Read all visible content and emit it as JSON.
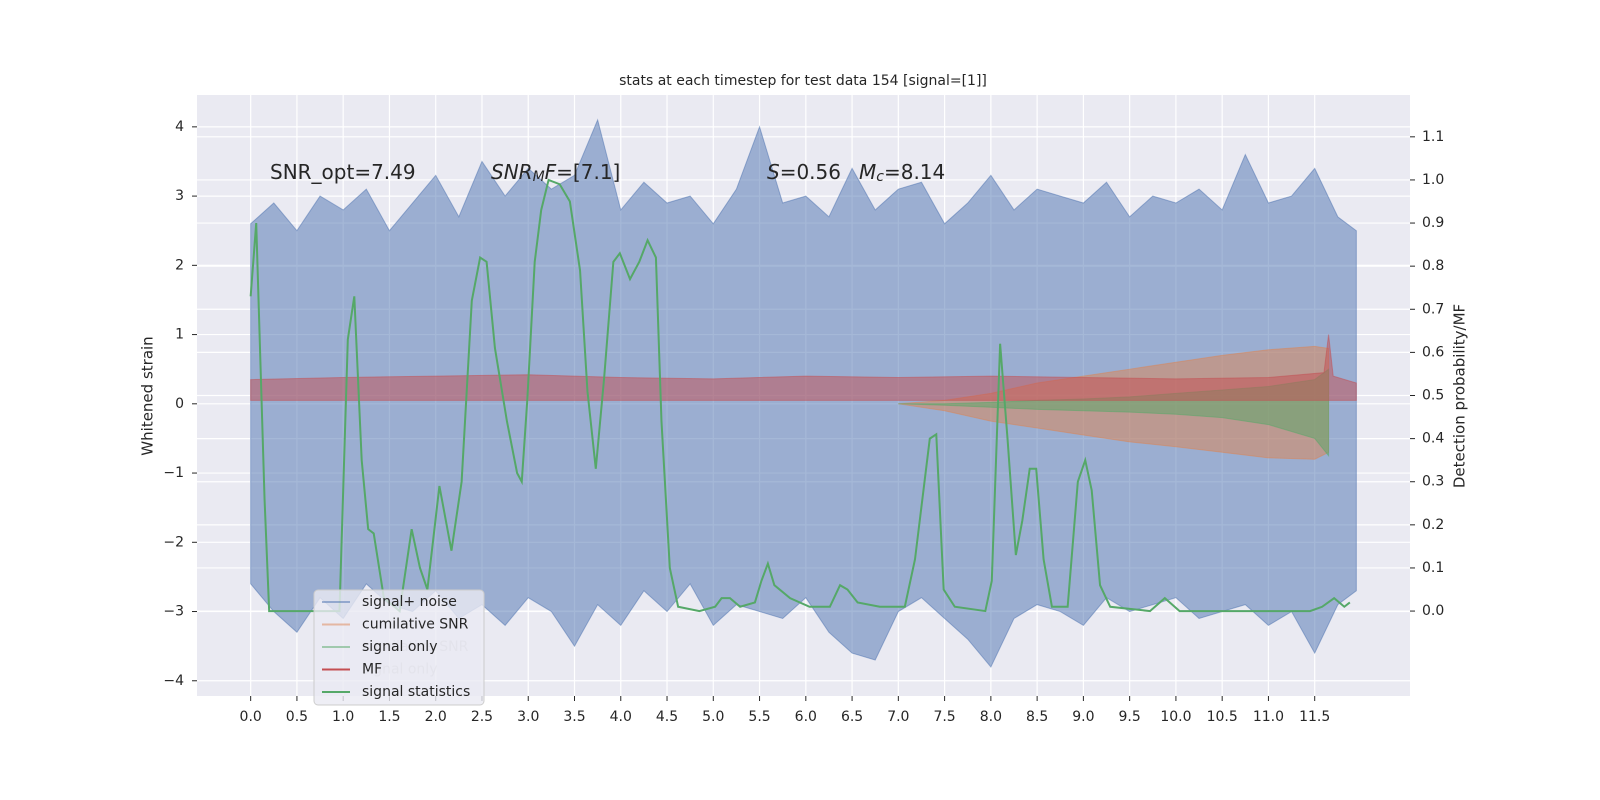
{
  "chart_data": {
    "type": "line",
    "title": "stats at each timestep for test data 154 [signal=[1]]",
    "ylabel": "Whitened strain",
    "y2label": "Detection probability/MF",
    "xlim": [
      -0.58,
      12.53
    ],
    "ylim": [
      -4.22,
      4.46
    ],
    "y2lim": [
      -0.197,
      1.197
    ],
    "xticks": [
      {
        "value": 0,
        "label": "0.0"
      },
      0.5,
      {
        "value": 1,
        "label": "1.0"
      },
      1.5,
      {
        "value": 2,
        "label": "2.0"
      },
      2.5,
      {
        "value": 3,
        "label": "3.0"
      },
      3.5,
      {
        "value": 4,
        "label": "4.0"
      },
      4.5,
      {
        "value": 5,
        "label": "5.0"
      },
      5.5,
      {
        "value": 6,
        "label": "6.0"
      },
      6.5,
      {
        "value": 7,
        "label": "7.0"
      },
      7.5,
      {
        "value": 8,
        "label": "8.0"
      },
      8.5,
      {
        "value": 9,
        "label": "9.0"
      },
      9.5,
      {
        "value": 10,
        "label": "10.0"
      },
      10.5,
      {
        "value": 11,
        "label": "11.0"
      },
      11.5
    ],
    "yticks": [
      {
        "value": -4,
        "label": "−4"
      },
      {
        "value": -3,
        "label": "−3"
      },
      {
        "value": -2,
        "label": "−2"
      },
      {
        "value": -1,
        "label": "−1"
      },
      0,
      1,
      2,
      3,
      4
    ],
    "y2ticks": [
      {
        "value": 0,
        "label": "0.0"
      },
      0.1,
      0.2,
      0.3,
      0.4,
      0.5,
      0.6,
      0.7,
      0.8,
      0.9,
      {
        "value": 1,
        "label": "1.0"
      },
      1.1
    ],
    "grid": true,
    "legend": "lower left",
    "annotations": [
      [
        {
          "text": "SNR_opt=7.49"
        }
      ],
      [
        {
          "text": "SNR",
          "italic": true
        },
        {
          "text": "M",
          "italic": true,
          "sub": true
        },
        {
          "text": "F",
          "italic": true
        },
        {
          "text": "=[7.1]"
        }
      ],
      [
        {
          "text": "S",
          "italic": true
        },
        {
          "text": "=0.56"
        }
      ],
      [
        {
          "text": "M",
          "italic": true
        },
        {
          "text": "c",
          "italic": true,
          "sub": true
        },
        {
          "text": "=8.14"
        }
      ]
    ],
    "series": [
      {
        "name": "signal+ noise",
        "color": "#4c72b0",
        "kind": "band",
        "x": [
          0,
          0.25,
          0.5,
          0.75,
          1,
          1.25,
          1.5,
          1.75,
          2,
          2.25,
          2.5,
          2.75,
          3,
          3.25,
          3.5,
          3.75,
          4,
          4.25,
          4.5,
          4.75,
          5,
          5.25,
          5.5,
          5.75,
          6,
          6.25,
          6.5,
          6.75,
          7,
          7.25,
          7.5,
          7.75,
          8,
          8.25,
          8.5,
          8.75,
          9,
          9.25,
          9.5,
          9.75,
          10,
          10.25,
          10.5,
          10.75,
          11,
          11.25,
          11.5,
          11.75,
          11.95
        ],
        "upper": [
          2.6,
          2.9,
          2.5,
          3.0,
          2.8,
          3.1,
          2.5,
          2.9,
          3.3,
          2.7,
          3.5,
          3.0,
          3.4,
          3.1,
          3.3,
          4.1,
          2.8,
          3.2,
          2.9,
          3.0,
          2.6,
          3.1,
          4.0,
          2.9,
          3.0,
          2.7,
          3.4,
          2.8,
          3.1,
          3.2,
          2.6,
          2.9,
          3.3,
          2.8,
          3.1,
          3.0,
          2.9,
          3.2,
          2.7,
          3.0,
          2.9,
          3.1,
          2.8,
          3.6,
          2.9,
          3.0,
          3.4,
          2.7,
          2.5
        ],
        "lower": [
          -2.6,
          -3.0,
          -3.3,
          -2.8,
          -3.1,
          -2.6,
          -2.9,
          -3.0,
          -2.7,
          -3.1,
          -2.9,
          -3.2,
          -2.8,
          -3.0,
          -3.5,
          -2.9,
          -3.2,
          -2.7,
          -3.0,
          -2.6,
          -3.2,
          -2.9,
          -3.0,
          -3.1,
          -2.8,
          -3.3,
          -3.6,
          -3.7,
          -3.0,
          -2.8,
          -3.1,
          -3.4,
          -3.8,
          -3.1,
          -2.9,
          -3.0,
          -3.2,
          -2.8,
          -3.0,
          -2.9,
          -2.8,
          -3.1,
          -3.0,
          -2.9,
          -3.2,
          -3.0,
          -3.6,
          -2.9,
          -2.7
        ]
      },
      {
        "name": "cumilative SNR",
        "color": "#dd8452",
        "kind": "band",
        "x": [
          7.0,
          7.5,
          8.0,
          8.5,
          9.0,
          9.5,
          10.0,
          10.5,
          11.0,
          11.5,
          11.65
        ],
        "upper": [
          0.0,
          0.05,
          0.15,
          0.3,
          0.4,
          0.5,
          0.6,
          0.7,
          0.78,
          0.83,
          0.8
        ],
        "lower": [
          0.0,
          -0.1,
          -0.25,
          -0.35,
          -0.45,
          -0.55,
          -0.62,
          -0.7,
          -0.78,
          -0.8,
          -0.7
        ]
      },
      {
        "name": "signal only",
        "color": "#55a868",
        "kind": "band",
        "x": [
          7.0,
          7.5,
          8.0,
          8.5,
          9.0,
          9.5,
          10.0,
          10.5,
          11.0,
          11.5,
          11.65
        ],
        "upper": [
          0.0,
          0.0,
          0.02,
          0.05,
          0.07,
          0.1,
          0.15,
          0.2,
          0.25,
          0.35,
          0.5
        ],
        "lower": [
          0.0,
          -0.02,
          -0.05,
          -0.08,
          -0.1,
          -0.12,
          -0.15,
          -0.2,
          -0.3,
          -0.5,
          -0.75
        ]
      },
      {
        "name": "MF",
        "color": "#c44e52",
        "kind": "band",
        "x": [
          0,
          1,
          2,
          3,
          4,
          5,
          6,
          7,
          8,
          9,
          10,
          11,
          11.6,
          11.65,
          11.7,
          11.95
        ],
        "upper": [
          0.35,
          0.38,
          0.4,
          0.42,
          0.38,
          0.36,
          0.4,
          0.38,
          0.4,
          0.38,
          0.36,
          0.38,
          0.45,
          1.0,
          0.4,
          0.3
        ],
        "lower": [
          0.05,
          0.05,
          0.05,
          0.05,
          0.05,
          0.05,
          0.05,
          0.05,
          0.05,
          0.05,
          0.05,
          0.05,
          0.05,
          0.05,
          0.05,
          0.05
        ]
      },
      {
        "name": "signal statistics",
        "color": "#55a868",
        "kind": "line",
        "axis": "y2",
        "x": [
          0,
          0.06,
          0.15,
          0.2,
          0.53,
          0.96,
          1.05,
          1.12,
          1.2,
          1.27,
          1.33,
          1.44,
          1.61,
          1.74,
          1.83,
          1.91,
          2.04,
          2.17,
          2.28,
          2.39,
          2.48,
          2.55,
          2.64,
          2.77,
          2.88,
          2.93,
          2.99,
          3.07,
          3.14,
          3.22,
          3.34,
          3.45,
          3.56,
          3.64,
          3.73,
          3.82,
          3.92,
          3.99,
          4.1,
          4.2,
          4.29,
          4.38,
          4.44,
          4.53,
          4.62,
          4.85,
          5.02,
          5.09,
          5.18,
          5.29,
          5.45,
          5.52,
          5.59,
          5.66,
          5.83,
          6.04,
          6.26,
          6.37,
          6.45,
          6.56,
          6.8,
          7.07,
          7.18,
          7.34,
          7.41,
          7.49,
          7.61,
          7.94,
          8.01,
          8.1,
          8.18,
          8.27,
          8.34,
          8.42,
          8.49,
          8.57,
          8.66,
          8.83,
          8.94,
          9.02,
          9.09,
          9.18,
          9.29,
          9.72,
          9.88,
          10.04,
          10.58,
          11.12,
          11.45,
          11.58,
          11.71,
          11.82,
          11.88
        ],
        "values": [
          0.73,
          0.9,
          0.26,
          0.0,
          0.0,
          0.0,
          0.63,
          0.73,
          0.35,
          0.19,
          0.18,
          0.03,
          0.0,
          0.19,
          0.1,
          0.05,
          0.29,
          0.14,
          0.3,
          0.72,
          0.82,
          0.81,
          0.61,
          0.44,
          0.32,
          0.3,
          0.49,
          0.81,
          0.93,
          1.0,
          0.99,
          0.95,
          0.79,
          0.51,
          0.33,
          0.54,
          0.81,
          0.83,
          0.77,
          0.81,
          0.86,
          0.82,
          0.44,
          0.1,
          0.01,
          0.0,
          0.01,
          0.03,
          0.03,
          0.01,
          0.02,
          0.07,
          0.11,
          0.06,
          0.03,
          0.01,
          0.01,
          0.06,
          0.05,
          0.02,
          0.01,
          0.01,
          0.12,
          0.4,
          0.41,
          0.05,
          0.01,
          0.0,
          0.07,
          0.62,
          0.4,
          0.13,
          0.21,
          0.33,
          0.33,
          0.12,
          0.01,
          0.01,
          0.3,
          0.35,
          0.28,
          0.06,
          0.01,
          0.0,
          0.03,
          0.0,
          0.0,
          0.0,
          0.0,
          0.01,
          0.03,
          0.01,
          0.02
        ]
      }
    ]
  }
}
